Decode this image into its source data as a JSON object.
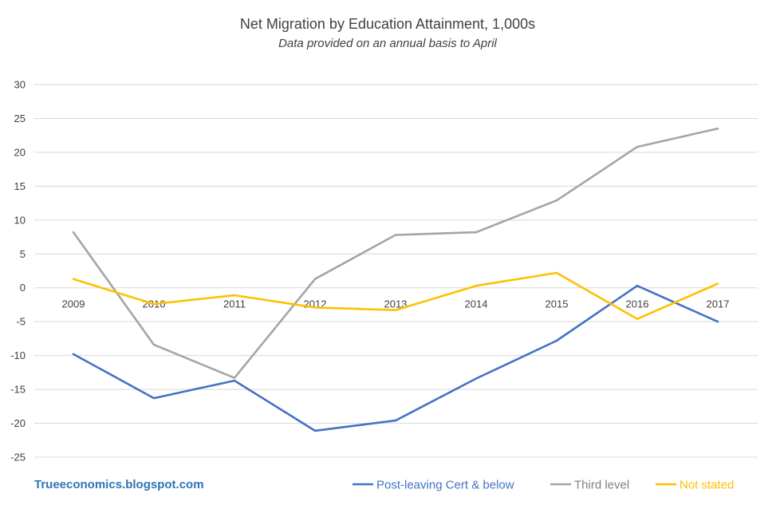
{
  "chart_data": {
    "type": "line",
    "title": "Net Migration by Education Attainment, 1,000s",
    "subtitle": "Data provided on an annual basis to April",
    "categories": [
      "2009",
      "2010",
      "2011",
      "2012",
      "2013",
      "2014",
      "2015",
      "2016",
      "2017"
    ],
    "ylim": [
      -25,
      30
    ],
    "yticks": [
      30,
      25,
      20,
      15,
      10,
      5,
      0,
      -5,
      -10,
      -15,
      -20,
      -25
    ],
    "grid": true,
    "legend_position": "bottom-right",
    "series": [
      {
        "name": "Post-leaving Cert & below",
        "color": "#4472c4",
        "values": [
          -9.8,
          -16.3,
          -13.7,
          -21.1,
          -19.6,
          -13.4,
          -7.8,
          0.3,
          -5.0
        ]
      },
      {
        "name": "Third level",
        "color": "#a5a5a5",
        "values": [
          8.2,
          -8.4,
          -13.3,
          1.3,
          7.8,
          8.2,
          12.9,
          20.8,
          23.5
        ]
      },
      {
        "name": "Not stated",
        "color": "#ffc000",
        "values": [
          1.3,
          -2.4,
          -1.1,
          -2.9,
          -3.3,
          0.3,
          2.2,
          -4.6,
          0.6
        ]
      }
    ],
    "source_text": "Trueeconomics.blogspot.com",
    "source_color": "#2e75b6"
  }
}
